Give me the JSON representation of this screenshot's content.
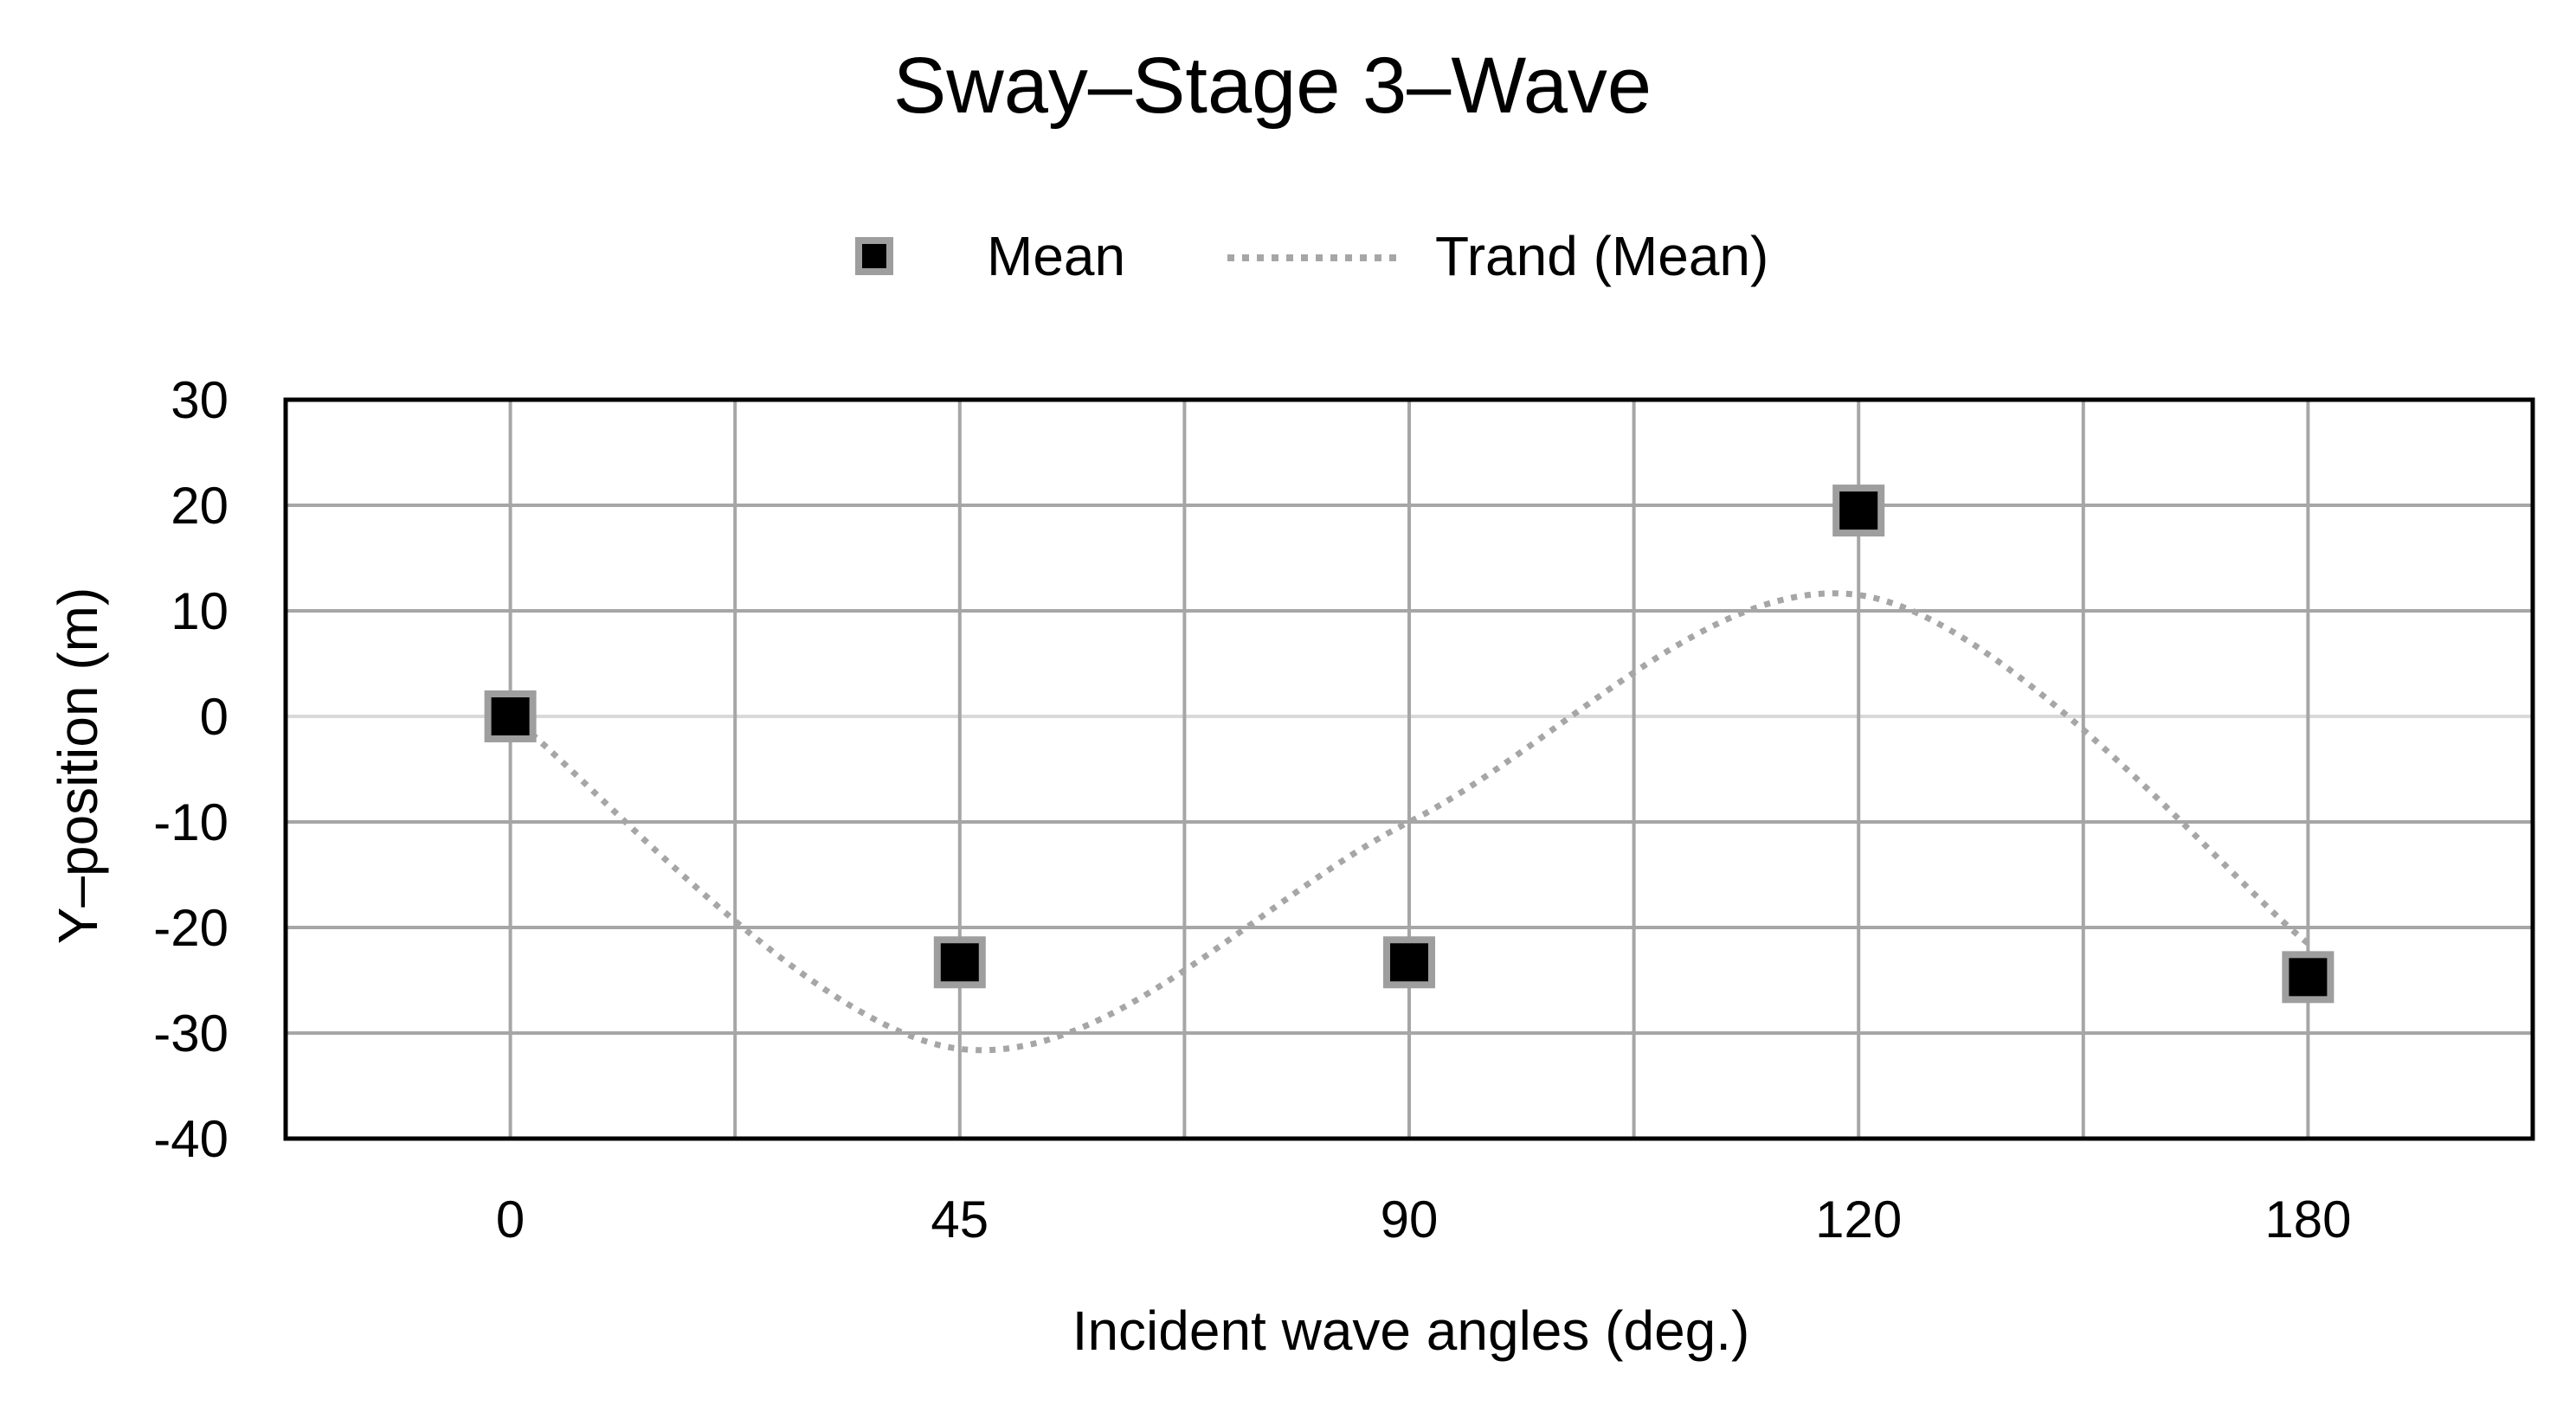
{
  "chart_data": {
    "type": "scatter",
    "title": "Sway–Stage 3–Wave",
    "xlabel": "Incident wave angles (deg.)",
    "ylabel": "Y–position (m)",
    "categories": [
      "0",
      "45",
      "90",
      "120",
      "180"
    ],
    "ylim": [
      -40,
      30
    ],
    "yticks": [
      "30",
      "20",
      "10",
      "0",
      "-10",
      "-20",
      "-30",
      "-40"
    ],
    "grid": true,
    "legend_position": "top",
    "series": [
      {
        "name": "Mean",
        "kind": "markers",
        "marker": "square",
        "color": "#000000",
        "values": [
          0,
          -23.3,
          -23.3,
          19.5,
          -24.7
        ]
      },
      {
        "name": "Trand (Mean)",
        "kind": "dotted-trend-line",
        "color": "#a6a6a6",
        "values": [
          0,
          -31.5,
          -10,
          11.5,
          -21.5
        ]
      }
    ]
  }
}
